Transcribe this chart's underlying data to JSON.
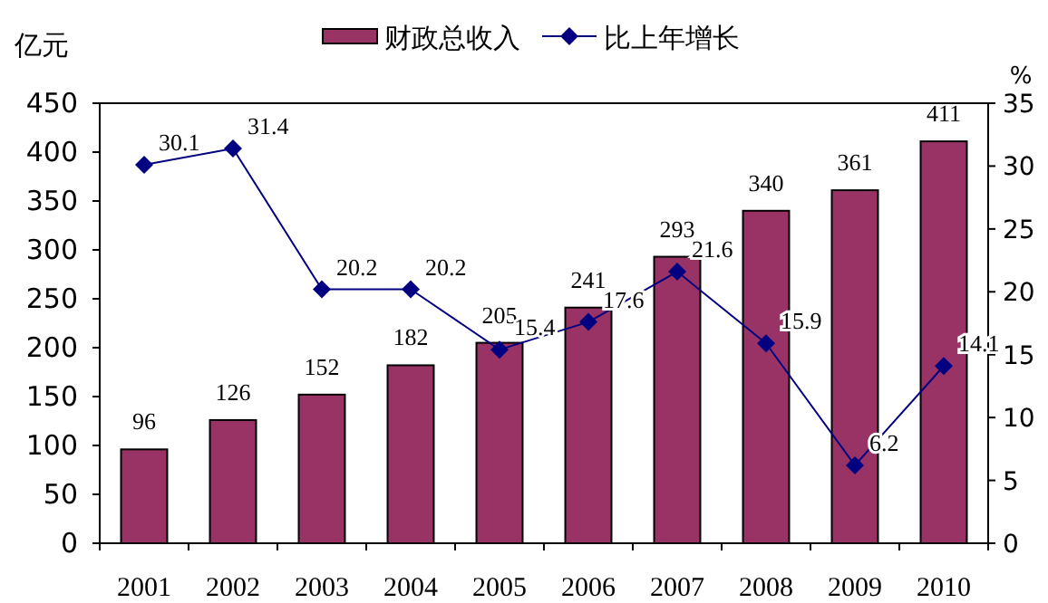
{
  "chart_data": {
    "type": "bar",
    "categories": [
      "2001",
      "2002",
      "2003",
      "2004",
      "2005",
      "2006",
      "2007",
      "2008",
      "2009",
      "2010"
    ],
    "ylabel": "亿元",
    "y2label": "%",
    "series": [
      {
        "name": "财政总收入",
        "color": "#993366",
        "values": [
          96,
          126,
          152,
          182,
          205,
          241,
          293,
          340,
          361,
          411
        ]
      },
      {
        "name": "比上年增长",
        "type": "line",
        "axis": "y2",
        "color": "#000080",
        "values": [
          30.1,
          31.4,
          20.2,
          20.2,
          15.4,
          17.6,
          21.6,
          15.9,
          6.2,
          14.1
        ]
      }
    ],
    "ylim": [
      0,
      450
    ],
    "yticks": [
      0,
      50,
      100,
      150,
      200,
      250,
      300,
      350,
      400,
      450
    ],
    "y2lim": [
      0,
      35
    ],
    "y2ticks": [
      0,
      5,
      10,
      15,
      20,
      25,
      30,
      35
    ],
    "data_labels": true,
    "legend": "top",
    "marker": "diamond",
    "grid": false
  }
}
